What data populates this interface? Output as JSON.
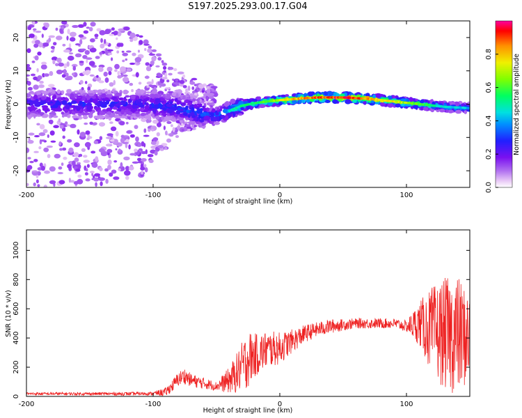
{
  "figure_title": "S197.2025.293.00.17.G04",
  "chart_data": [
    {
      "type": "heatmap",
      "title": "",
      "xlabel": "Height of straight line (km)",
      "ylabel": "Frequency (Hz)",
      "xlim": [
        -200,
        150
      ],
      "ylim": [
        -25,
        25
      ],
      "xticks": [
        "-200",
        "-100",
        "0",
        "100"
      ],
      "yticks": [
        "-20",
        "-10",
        "0",
        "10",
        "20"
      ],
      "colorbar": {
        "label": "Normalized spectral amplitude",
        "range": [
          0,
          1
        ],
        "ticks": [
          "0.0",
          "0.2",
          "0.4",
          "0.6",
          "0.8"
        ]
      },
      "ridge": {
        "x": [
          -200,
          -150,
          -110,
          -80,
          -60,
          -50,
          -40,
          -30,
          -20,
          -10,
          0,
          10,
          20,
          30,
          50,
          70,
          90,
          110,
          130,
          150
        ],
        "frequency": [
          0,
          0,
          0,
          -1,
          -3,
          -3.5,
          -2,
          -0.5,
          0.3,
          0.8,
          1.2,
          1.5,
          1.8,
          2,
          2,
          1.6,
          0.8,
          0,
          -0.8,
          -1.2
        ],
        "peak_amplitude": [
          0.3,
          0.3,
          0.3,
          0.35,
          0.4,
          0.4,
          0.5,
          0.55,
          0.6,
          0.65,
          0.75,
          0.85,
          0.9,
          0.95,
          1.0,
          0.9,
          0.8,
          0.65,
          0.5,
          0.45
        ]
      },
      "scatter_extent": {
        "x": [
          -200,
          -150,
          -110,
          -95,
          -80,
          -60
        ],
        "frequency_halfwidth": [
          25,
          25,
          22,
          15,
          10,
          6
        ]
      }
    },
    {
      "type": "line",
      "title": "",
      "xlabel": "Height of straight line (km)",
      "ylabel": "SNR (10 * v/v)",
      "xlim": [
        -200,
        150
      ],
      "ylim": [
        0,
        1140
      ],
      "xticks": [
        "-200",
        "-100",
        "0",
        "100"
      ],
      "yticks": [
        "0",
        "200",
        "400",
        "600",
        "800",
        "1000"
      ],
      "series": [
        {
          "name": "SNR",
          "color": "#ee2222",
          "envelope_x": [
            -200,
            -180,
            -150,
            -120,
            -100,
            -90,
            -85,
            -80,
            -75,
            -70,
            -60,
            -50,
            -45,
            -40,
            -35,
            -30,
            -25,
            -20,
            -10,
            0,
            10,
            20,
            30,
            40,
            50,
            60,
            70,
            80,
            90,
            100,
            110,
            120,
            130,
            140,
            150
          ],
          "envelope_mean": [
            18,
            18,
            18,
            18,
            20,
            30,
            70,
            120,
            140,
            110,
            90,
            70,
            90,
            110,
            150,
            200,
            260,
            280,
            320,
            330,
            380,
            430,
            460,
            480,
            490,
            500,
            500,
            500,
            500,
            480,
            500,
            450,
            430,
            420,
            400
          ],
          "envelope_spread": [
            10,
            10,
            10,
            12,
            12,
            30,
            40,
            50,
            55,
            45,
            40,
            30,
            60,
            90,
            130,
            170,
            200,
            150,
            130,
            110,
            80,
            60,
            50,
            50,
            40,
            35,
            35,
            35,
            35,
            40,
            150,
            300,
            380,
            420,
            300
          ]
        }
      ]
    }
  ]
}
